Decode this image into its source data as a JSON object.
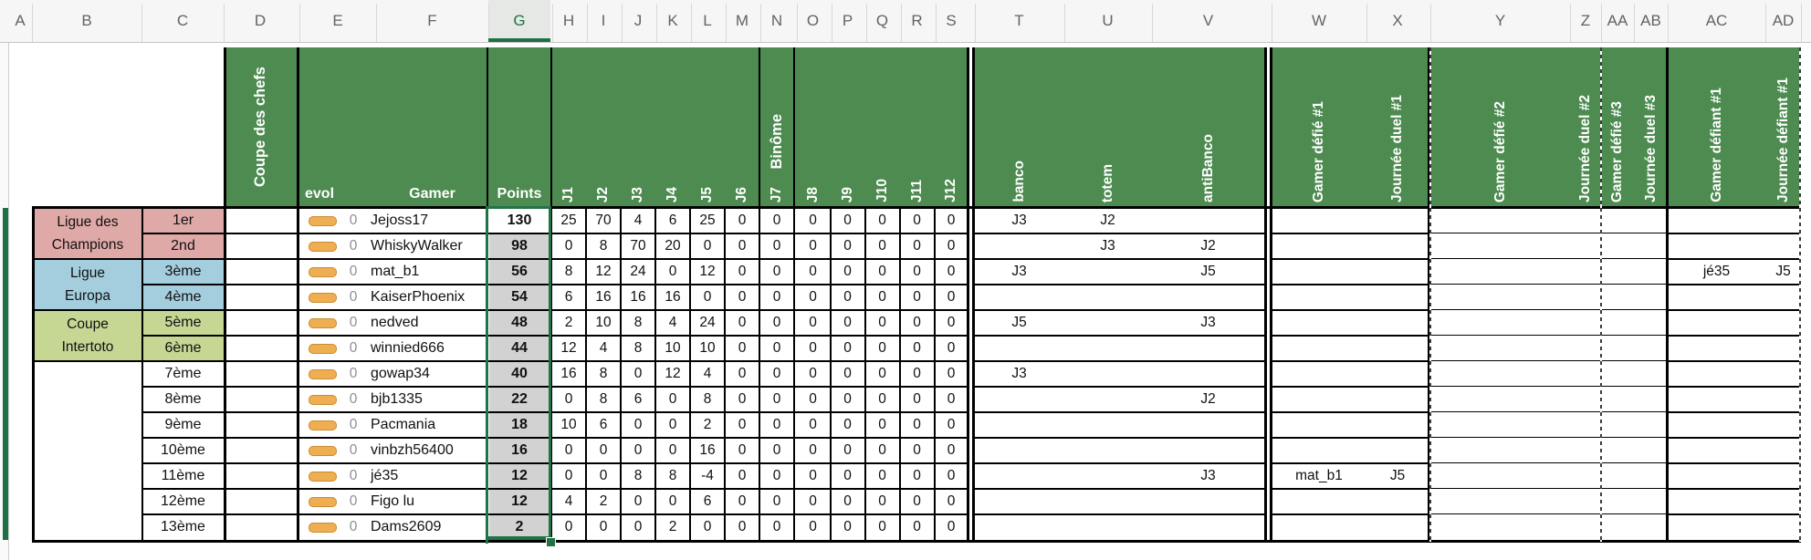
{
  "sheet": {
    "column_letters": [
      "A",
      "B",
      "C",
      "D",
      "E",
      "F",
      "G",
      "H",
      "I",
      "J",
      "K",
      "L",
      "M",
      "N",
      "O",
      "P",
      "Q",
      "R",
      "S",
      "T",
      "U",
      "V",
      "W",
      "X",
      "Y",
      "Z",
      "AA",
      "AB",
      "AC",
      "AD"
    ],
    "selected_column_letter": "G",
    "colors": {
      "header_green": "#4d8b50",
      "selection_green": "#217346",
      "points_fill": "#d2d2d2",
      "active_cell_fill": "#ffffff",
      "league_champions": "#dfa9a8",
      "league_europa": "#a4cede",
      "league_intertoto": "#c6d693",
      "evol_icon_fill": "#efae52",
      "evol_icon_border": "#c98c33"
    },
    "header": {
      "coupe_des_chefs": "Coupe des chefs",
      "evol": "evol",
      "gamer": "Gamer",
      "points": "Points",
      "binome": "Binôme",
      "matchdays": [
        "J1",
        "J2",
        "J3",
        "J4",
        "J5",
        "J6",
        "J7",
        "J8",
        "J9",
        "J10",
        "J11",
        "J12"
      ],
      "banco": "banco",
      "totem": "totem",
      "antibanco": "antiBanco",
      "gamer_defie_1": "Gamer défié #1",
      "journee_duel_1": "Journée duel #1",
      "gamer_defie_2": "Gamer défié #2",
      "journee_duel_2": "Journée duel #2",
      "gamer_defie_3": "Gamer défié #3",
      "journee_duel_3": "Journée duel #3",
      "gamer_defiant_1": "Gamer défiant #1",
      "journee_defiant_1": "Journée défiant #1"
    },
    "leagues": [
      {
        "name": "Ligue des Champions",
        "line1": "Ligue des",
        "line2": "Champions",
        "color": "#dfa9a8"
      },
      {
        "name": "Ligue Europa",
        "line1": "Ligue",
        "line2": "Europa",
        "color": "#a4cede"
      },
      {
        "name": "Coupe Intertoto",
        "line1": "Coupe",
        "line2": "Intertoto",
        "color": "#c6d693"
      }
    ],
    "rows": [
      {
        "rank": "1er",
        "evol": "0",
        "gamer": "Jejoss17",
        "points": "130",
        "days": [
          25,
          70,
          4,
          6,
          25,
          0,
          0,
          0,
          0,
          0,
          0,
          0
        ],
        "banco": "J3",
        "totem": "J2",
        "antibanco": "",
        "defie1": "",
        "duel1": "",
        "defie2": "",
        "duel2": "",
        "defie3": "",
        "duel3": "",
        "defiant1": "",
        "journee_defiant1": ""
      },
      {
        "rank": "2nd",
        "evol": "0",
        "gamer": "WhiskyWalker",
        "points": "98",
        "days": [
          0,
          8,
          70,
          20,
          0,
          0,
          0,
          0,
          0,
          0,
          0,
          0
        ],
        "banco": "",
        "totem": "J3",
        "antibanco": "J2",
        "defie1": "",
        "duel1": "",
        "defie2": "",
        "duel2": "",
        "defie3": "",
        "duel3": "",
        "defiant1": "",
        "journee_defiant1": ""
      },
      {
        "rank": "3ème",
        "evol": "0",
        "gamer": "mat_b1",
        "points": "56",
        "days": [
          8,
          12,
          24,
          0,
          12,
          0,
          0,
          0,
          0,
          0,
          0,
          0
        ],
        "banco": "J3",
        "totem": "",
        "antibanco": "J5",
        "defie1": "",
        "duel1": "",
        "defie2": "",
        "duel2": "",
        "defie3": "",
        "duel3": "",
        "defiant1": "jé35",
        "journee_defiant1": "J5"
      },
      {
        "rank": "4ème",
        "evol": "0",
        "gamer": "KaiserPhoenix",
        "points": "54",
        "days": [
          6,
          16,
          16,
          16,
          0,
          0,
          0,
          0,
          0,
          0,
          0,
          0
        ],
        "banco": "",
        "totem": "",
        "antibanco": "",
        "defie1": "",
        "duel1": "",
        "defie2": "",
        "duel2": "",
        "defie3": "",
        "duel3": "",
        "defiant1": "",
        "journee_defiant1": ""
      },
      {
        "rank": "5ème",
        "evol": "0",
        "gamer": "nedved",
        "points": "48",
        "days": [
          2,
          10,
          8,
          4,
          24,
          0,
          0,
          0,
          0,
          0,
          0,
          0
        ],
        "banco": "J5",
        "totem": "",
        "antibanco": "J3",
        "defie1": "",
        "duel1": "",
        "defie2": "",
        "duel2": "",
        "defie3": "",
        "duel3": "",
        "defiant1": "",
        "journee_defiant1": ""
      },
      {
        "rank": "6ème",
        "evol": "0",
        "gamer": "winnied666",
        "points": "44",
        "days": [
          12,
          4,
          8,
          10,
          10,
          0,
          0,
          0,
          0,
          0,
          0,
          0
        ],
        "banco": "",
        "totem": "",
        "antibanco": "",
        "defie1": "",
        "duel1": "",
        "defie2": "",
        "duel2": "",
        "defie3": "",
        "duel3": "",
        "defiant1": "",
        "journee_defiant1": ""
      },
      {
        "rank": "7ème",
        "evol": "0",
        "gamer": "gowap34",
        "points": "40",
        "days": [
          16,
          8,
          0,
          12,
          4,
          0,
          0,
          0,
          0,
          0,
          0,
          0
        ],
        "banco": "J3",
        "totem": "",
        "antibanco": "",
        "defie1": "",
        "duel1": "",
        "defie2": "",
        "duel2": "",
        "defie3": "",
        "duel3": "",
        "defiant1": "",
        "journee_defiant1": ""
      },
      {
        "rank": "8ème",
        "evol": "0",
        "gamer": "bjb1335",
        "points": "22",
        "days": [
          0,
          8,
          6,
          0,
          8,
          0,
          0,
          0,
          0,
          0,
          0,
          0
        ],
        "banco": "",
        "totem": "",
        "antibanco": "J2",
        "defie1": "",
        "duel1": "",
        "defie2": "",
        "duel2": "",
        "defie3": "",
        "duel3": "",
        "defiant1": "",
        "journee_defiant1": ""
      },
      {
        "rank": "9ème",
        "evol": "0",
        "gamer": "Pacmania",
        "points": "18",
        "days": [
          10,
          6,
          0,
          0,
          2,
          0,
          0,
          0,
          0,
          0,
          0,
          0
        ],
        "banco": "",
        "totem": "",
        "antibanco": "",
        "defie1": "",
        "duel1": "",
        "defie2": "",
        "duel2": "",
        "defie3": "",
        "duel3": "",
        "defiant1": "",
        "journee_defiant1": ""
      },
      {
        "rank": "10ème",
        "evol": "0",
        "gamer": "vinbzh56400",
        "points": "16",
        "days": [
          0,
          0,
          0,
          0,
          16,
          0,
          0,
          0,
          0,
          0,
          0,
          0
        ],
        "banco": "",
        "totem": "",
        "antibanco": "",
        "defie1": "",
        "duel1": "",
        "defie2": "",
        "duel2": "",
        "defie3": "",
        "duel3": "",
        "defiant1": "",
        "journee_defiant1": ""
      },
      {
        "rank": "11ème",
        "evol": "0",
        "gamer": "jé35",
        "points": "12",
        "days": [
          0,
          0,
          8,
          8,
          -4,
          0,
          0,
          0,
          0,
          0,
          0,
          0
        ],
        "banco": "",
        "totem": "",
        "antibanco": "J3",
        "defie1": "mat_b1",
        "duel1": "J5",
        "defie2": "",
        "duel2": "",
        "defie3": "",
        "duel3": "",
        "defiant1": "",
        "journee_defiant1": ""
      },
      {
        "rank": "12ème",
        "evol": "0",
        "gamer": "Figo lu",
        "points": "12",
        "days": [
          4,
          2,
          0,
          0,
          6,
          0,
          0,
          0,
          0,
          0,
          0,
          0
        ],
        "banco": "",
        "totem": "",
        "antibanco": "",
        "defie1": "",
        "duel1": "",
        "defie2": "",
        "duel2": "",
        "defie3": "",
        "duel3": "",
        "defiant1": "",
        "journee_defiant1": ""
      },
      {
        "rank": "13ème",
        "evol": "0",
        "gamer": "Dams2609",
        "points": "2",
        "days": [
          0,
          0,
          0,
          2,
          0,
          0,
          0,
          0,
          0,
          0,
          0,
          0
        ],
        "banco": "",
        "totem": "",
        "antibanco": "",
        "defie1": "",
        "duel1": "",
        "defie2": "",
        "duel2": "",
        "defie3": "",
        "duel3": "",
        "defiant1": "",
        "journee_defiant1": ""
      }
    ]
  }
}
